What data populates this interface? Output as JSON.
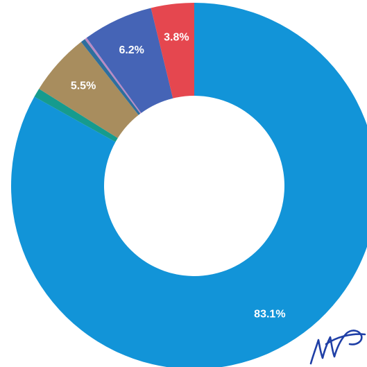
{
  "chart_data": {
    "type": "pie",
    "variant": "donut",
    "title": "",
    "start_angle_deg": 0,
    "direction": "clockwise",
    "slices": [
      {
        "value": 83.1,
        "label": "83.1%",
        "color": "#1294d8",
        "show_label": true
      },
      {
        "value": 0.8,
        "label": "",
        "color": "#169b8e",
        "show_label": false
      },
      {
        "value": 5.5,
        "label": "5.5%",
        "color": "#a88d5e",
        "show_label": true
      },
      {
        "value": 0.4,
        "label": "",
        "color": "#2e6f9e",
        "show_label": false
      },
      {
        "value": 0.2,
        "label": "",
        "color": "#b98ac4",
        "show_label": false
      },
      {
        "value": 6.2,
        "label": "6.2%",
        "color": "#4564b6",
        "show_label": true
      },
      {
        "value": 3.8,
        "label": "3.8%",
        "color": "#e5474f",
        "show_label": true
      }
    ],
    "legend": "none",
    "grid": false
  },
  "decorations": {
    "signature_present": true
  }
}
